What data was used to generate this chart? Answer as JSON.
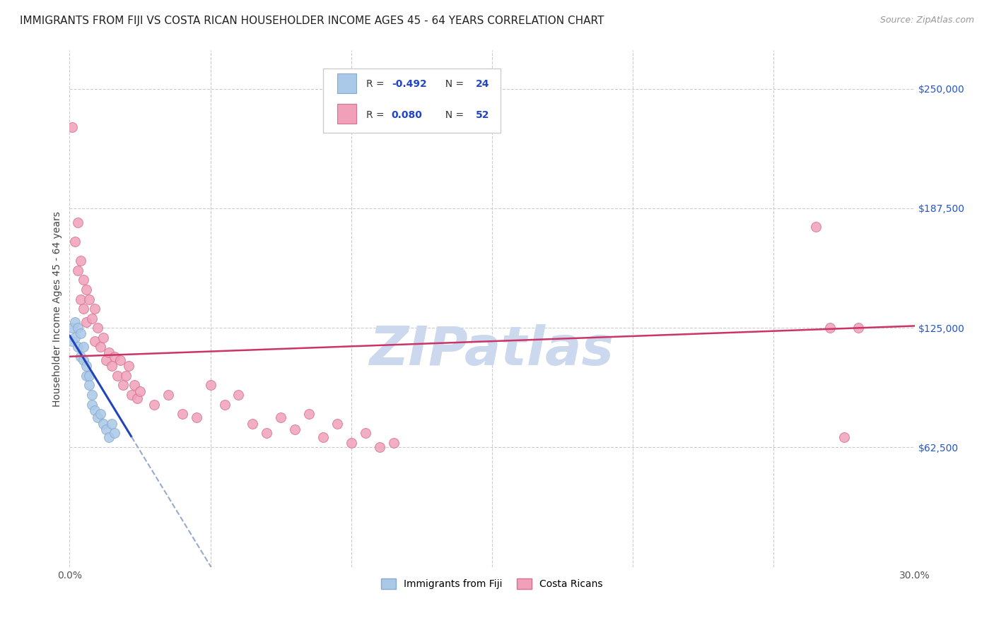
{
  "title": "IMMIGRANTS FROM FIJI VS COSTA RICAN HOUSEHOLDER INCOME AGES 45 - 64 YEARS CORRELATION CHART",
  "source": "Source: ZipAtlas.com",
  "ylabel": "Householder Income Ages 45 - 64 years",
  "xlim": [
    0.0,
    0.3
  ],
  "ylim": [
    0,
    270000
  ],
  "xtick_positions": [
    0.0,
    0.05,
    0.1,
    0.15,
    0.2,
    0.25,
    0.3
  ],
  "ytick_positions": [
    0,
    62500,
    125000,
    187500,
    250000
  ],
  "ytick_labels": [
    "",
    "$62,500",
    "$125,000",
    "$187,500",
    "$250,000"
  ],
  "grid_color": "#cccccc",
  "background_color": "#ffffff",
  "fiji_color": "#aac8e8",
  "fiji_edge_color": "#88aacc",
  "cr_color": "#f0a0b8",
  "cr_edge_color": "#d87090",
  "fiji_R": -0.492,
  "fiji_N": 24,
  "cr_R": 0.08,
  "cr_N": 52,
  "trend_fiji_color": "#2244bb",
  "trend_cr_color": "#cc3366",
  "trend_dashed_color": "#99aace",
  "watermark": "ZIPatlas",
  "watermark_color": "#ccd8ee",
  "fiji_x": [
    0.001,
    0.001,
    0.002,
    0.002,
    0.003,
    0.003,
    0.004,
    0.004,
    0.005,
    0.005,
    0.006,
    0.006,
    0.007,
    0.007,
    0.008,
    0.008,
    0.009,
    0.01,
    0.011,
    0.012,
    0.013,
    0.014,
    0.015,
    0.016
  ],
  "fiji_y": [
    125000,
    118000,
    128000,
    120000,
    125000,
    115000,
    122000,
    110000,
    108000,
    115000,
    100000,
    105000,
    95000,
    100000,
    85000,
    90000,
    82000,
    78000,
    80000,
    75000,
    72000,
    68000,
    75000,
    70000
  ],
  "cr_x": [
    0.001,
    0.002,
    0.003,
    0.003,
    0.004,
    0.004,
    0.005,
    0.005,
    0.006,
    0.006,
    0.007,
    0.008,
    0.009,
    0.009,
    0.01,
    0.011,
    0.012,
    0.013,
    0.014,
    0.015,
    0.016,
    0.017,
    0.018,
    0.019,
    0.02,
    0.021,
    0.022,
    0.023,
    0.024,
    0.025,
    0.03,
    0.035,
    0.04,
    0.045,
    0.05,
    0.055,
    0.06,
    0.065,
    0.07,
    0.075,
    0.08,
    0.085,
    0.09,
    0.095,
    0.1,
    0.105,
    0.11,
    0.115,
    0.265,
    0.27,
    0.275,
    0.28
  ],
  "cr_y": [
    230000,
    170000,
    180000,
    155000,
    160000,
    140000,
    150000,
    135000,
    145000,
    128000,
    140000,
    130000,
    135000,
    118000,
    125000,
    115000,
    120000,
    108000,
    112000,
    105000,
    110000,
    100000,
    108000,
    95000,
    100000,
    105000,
    90000,
    95000,
    88000,
    92000,
    85000,
    90000,
    80000,
    78000,
    95000,
    85000,
    90000,
    75000,
    70000,
    78000,
    72000,
    80000,
    68000,
    75000,
    65000,
    70000,
    62500,
    65000,
    178000,
    125000,
    68000,
    125000
  ],
  "legend_fiji_label": "Immigrants from Fiji",
  "legend_cr_label": "Costa Ricans",
  "marker_size": 100,
  "title_fontsize": 11,
  "axis_label_fontsize": 10,
  "tick_fontsize": 10,
  "legend_fontsize": 10,
  "source_fontsize": 9
}
